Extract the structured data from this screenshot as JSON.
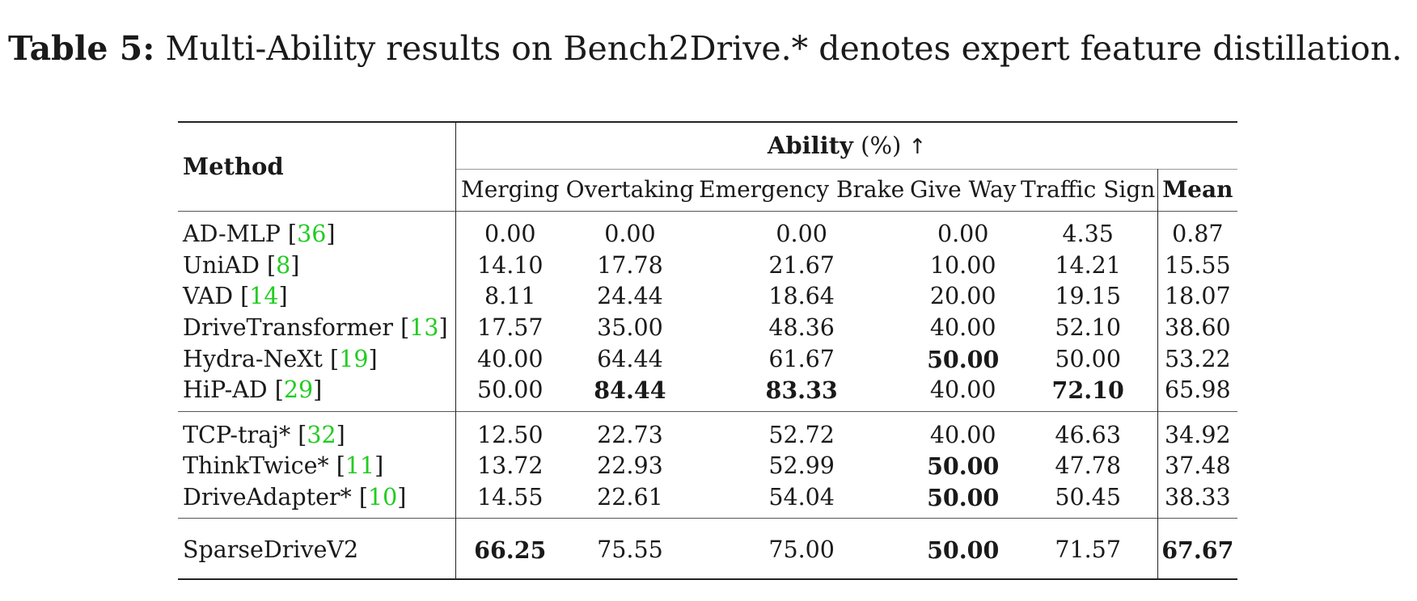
{
  "caption": {
    "label": "Table 5:",
    "text": "Multi-Ability results on Bench2Drive.* denotes expert feature distillation."
  },
  "table": {
    "method_header": "Method",
    "group_header": "Ability",
    "group_unit": "(%)",
    "group_arrow": "↑",
    "columns": [
      "Merging",
      "Overtaking",
      "Emergency Brake",
      "Give Way",
      "Traffic Sign",
      "Mean"
    ],
    "groups": [
      {
        "rows": [
          {
            "method": "AD-MLP",
            "ref": "36",
            "values": [
              "0.00",
              "0.00",
              "0.00",
              "0.00",
              "4.35",
              "0.87"
            ],
            "bold": []
          },
          {
            "method": "UniAD",
            "ref": "8",
            "values": [
              "14.10",
              "17.78",
              "21.67",
              "10.00",
              "14.21",
              "15.55"
            ],
            "bold": []
          },
          {
            "method": "VAD",
            "ref": "14",
            "values": [
              "8.11",
              "24.44",
              "18.64",
              "20.00",
              "19.15",
              "18.07"
            ],
            "bold": []
          },
          {
            "method": "DriveTransformer",
            "ref": "13",
            "values": [
              "17.57",
              "35.00",
              "48.36",
              "40.00",
              "52.10",
              "38.60"
            ],
            "bold": []
          },
          {
            "method": "Hydra-NeXt",
            "ref": "19",
            "values": [
              "40.00",
              "64.44",
              "61.67",
              "50.00",
              "50.00",
              "53.22"
            ],
            "bold": [
              3
            ]
          },
          {
            "method": "HiP-AD",
            "ref": "29",
            "values": [
              "50.00",
              "84.44",
              "83.33",
              "40.00",
              "72.10",
              "65.98"
            ],
            "bold": [
              1,
              2,
              4
            ]
          }
        ]
      },
      {
        "rows": [
          {
            "method": "TCP-traj*",
            "ref": "32",
            "values": [
              "12.50",
              "22.73",
              "52.72",
              "40.00",
              "46.63",
              "34.92"
            ],
            "bold": []
          },
          {
            "method": "ThinkTwice*",
            "ref": "11",
            "values": [
              "13.72",
              "22.93",
              "52.99",
              "50.00",
              "47.78",
              "37.48"
            ],
            "bold": [
              3
            ]
          },
          {
            "method": "DriveAdapter*",
            "ref": "10",
            "values": [
              "14.55",
              "22.61",
              "54.04",
              "50.00",
              "50.45",
              "38.33"
            ],
            "bold": [
              3
            ]
          }
        ]
      },
      {
        "rows": [
          {
            "method": "SparseDriveV2",
            "ref": "",
            "values": [
              "66.25",
              "75.55",
              "75.00",
              "50.00",
              "71.57",
              "67.67"
            ],
            "bold": [
              0,
              3,
              5
            ]
          }
        ]
      }
    ]
  },
  "colors": {
    "reference_link": "#22cc22",
    "text": "#1a1a1a"
  }
}
